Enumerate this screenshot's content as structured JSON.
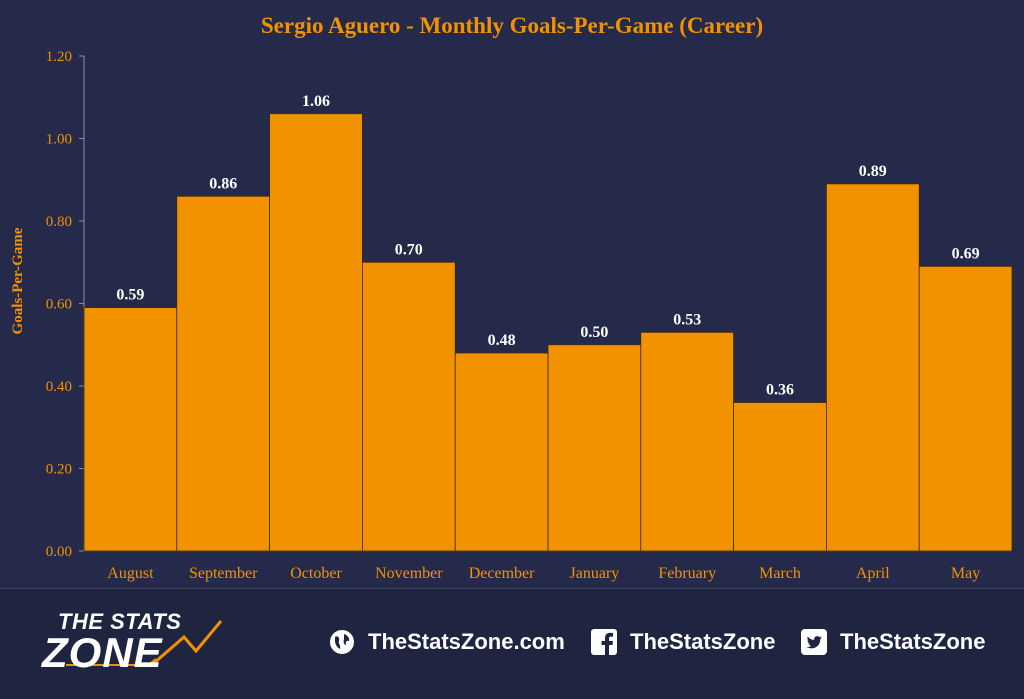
{
  "colors": {
    "background": "#252a4a",
    "bar": "#f39200",
    "bar_stroke": "#3a2a10",
    "accent_text": "#f39200",
    "axis_text": "#f39200",
    "label_text": "#ffffff"
  },
  "chart_data": {
    "type": "bar",
    "title": "Sergio Aguero - Monthly Goals-Per-Game (Career)",
    "xlabel": "",
    "ylabel": "Goals-Per-Game",
    "ylim": [
      0,
      1.2
    ],
    "yticks": [
      "0.00",
      "0.20",
      "0.40",
      "0.60",
      "0.80",
      "1.00",
      "1.20"
    ],
    "ytick_values": [
      0,
      0.2,
      0.4,
      0.6,
      0.8,
      1.0,
      1.2
    ],
    "grid": false,
    "categories": [
      "August",
      "September",
      "October",
      "November",
      "December",
      "January",
      "February",
      "March",
      "April",
      "May"
    ],
    "values": [
      0.59,
      0.86,
      1.06,
      0.7,
      0.48,
      0.5,
      0.53,
      0.36,
      0.89,
      0.69
    ],
    "data_labels": [
      "0.59",
      "0.86",
      "1.06",
      "0.70",
      "0.48",
      "0.50",
      "0.53",
      "0.36",
      "0.89",
      "0.69"
    ]
  },
  "footer": {
    "logo_top": "THE STATS",
    "logo_bottom": "ZONE",
    "website": "TheStatsZone.com",
    "facebook": "TheStatsZone",
    "twitter": "TheStatsZone",
    "icons": [
      "globe-icon",
      "facebook-icon",
      "twitter-icon"
    ]
  }
}
